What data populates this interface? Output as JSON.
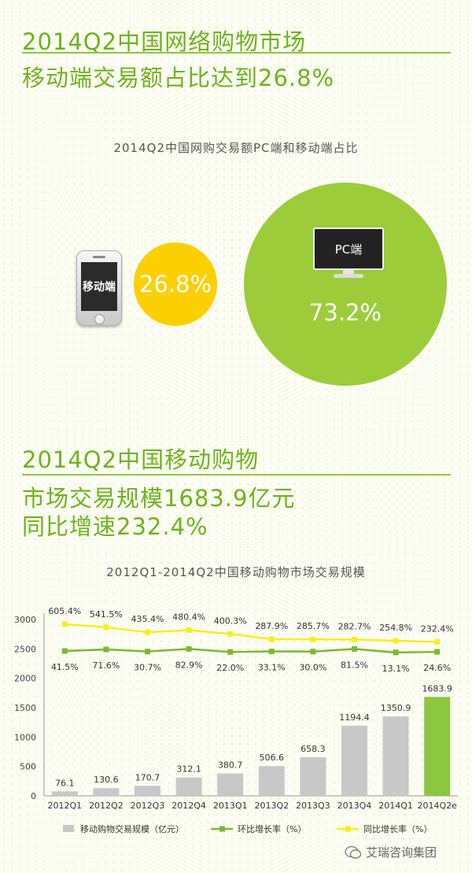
{
  "section1": {
    "line1": "2014Q2中国网络购物市场",
    "line2": "移动端交易额占比达到26.8%"
  },
  "share": {
    "title": "2014Q2中国网购交易额PC端和移动端占比",
    "mobile_label": "移动端",
    "mobile_value": "26.8%",
    "pc_label": "PC端",
    "pc_value": "73.2%",
    "colors": {
      "mobile": "#fccf00",
      "pc": "#9ccc3a"
    }
  },
  "section2": {
    "line1": "2014Q2中国移动购物",
    "line2": "市场交易规模1683.9亿元",
    "line3": "同比增速232.4%"
  },
  "chart_data": {
    "type": "bar",
    "title": "2012Q1-2014Q2中国移动购物市场交易规模",
    "categories": [
      "2012Q1",
      "2012Q2",
      "2012Q3",
      "2012Q4",
      "2013Q1",
      "2013Q2",
      "2013Q3",
      "2013Q4",
      "2014Q1",
      "2014Q2e"
    ],
    "series": [
      {
        "name": "移动购物交易规模（亿元）",
        "kind": "bar",
        "color": "#c8c8c8",
        "highlight_color": "#8dc63f",
        "values": [
          76.1,
          130.6,
          170.7,
          312.1,
          380.7,
          506.6,
          658.3,
          1194.4,
          1350.9,
          1683.9
        ],
        "labels": [
          "76.1",
          "130.6",
          "170.7",
          "312.1",
          "380.7",
          "506.6",
          "658.3",
          "1194.4",
          "1350.9",
          "1683.9"
        ]
      },
      {
        "name": "环比增长率（%）",
        "kind": "line",
        "color": "#7cb82f",
        "values": [
          41.5,
          71.6,
          30.7,
          82.9,
          22.0,
          33.1,
          30.0,
          81.5,
          13.1,
          24.6
        ],
        "labels": [
          "41.5%",
          "71.6%",
          "30.7%",
          "82.9%",
          "22.0%",
          "33.1%",
          "30.0%",
          "81.5%",
          "13.1%",
          "24.6%"
        ]
      },
      {
        "name": "同比增长率（%）",
        "kind": "line",
        "color": "#f6ef1a",
        "values": [
          605.4,
          541.5,
          435.4,
          480.4,
          400.3,
          287.9,
          285.7,
          282.7,
          254.8,
          232.4
        ],
        "labels": [
          "605.4%",
          "541.5%",
          "435.4%",
          "480.4%",
          "400.3%",
          "287.9%",
          "285.7%",
          "282.7%",
          "254.8%",
          "232.4%"
        ]
      }
    ],
    "y_ticks": [
      "0",
      "500",
      "1000",
      "1500",
      "2000",
      "2500",
      "3000"
    ],
    "ylim": [
      0,
      3000
    ],
    "legend_position": "bottom",
    "grid": false
  },
  "watermark": "艾瑞咨询集团"
}
